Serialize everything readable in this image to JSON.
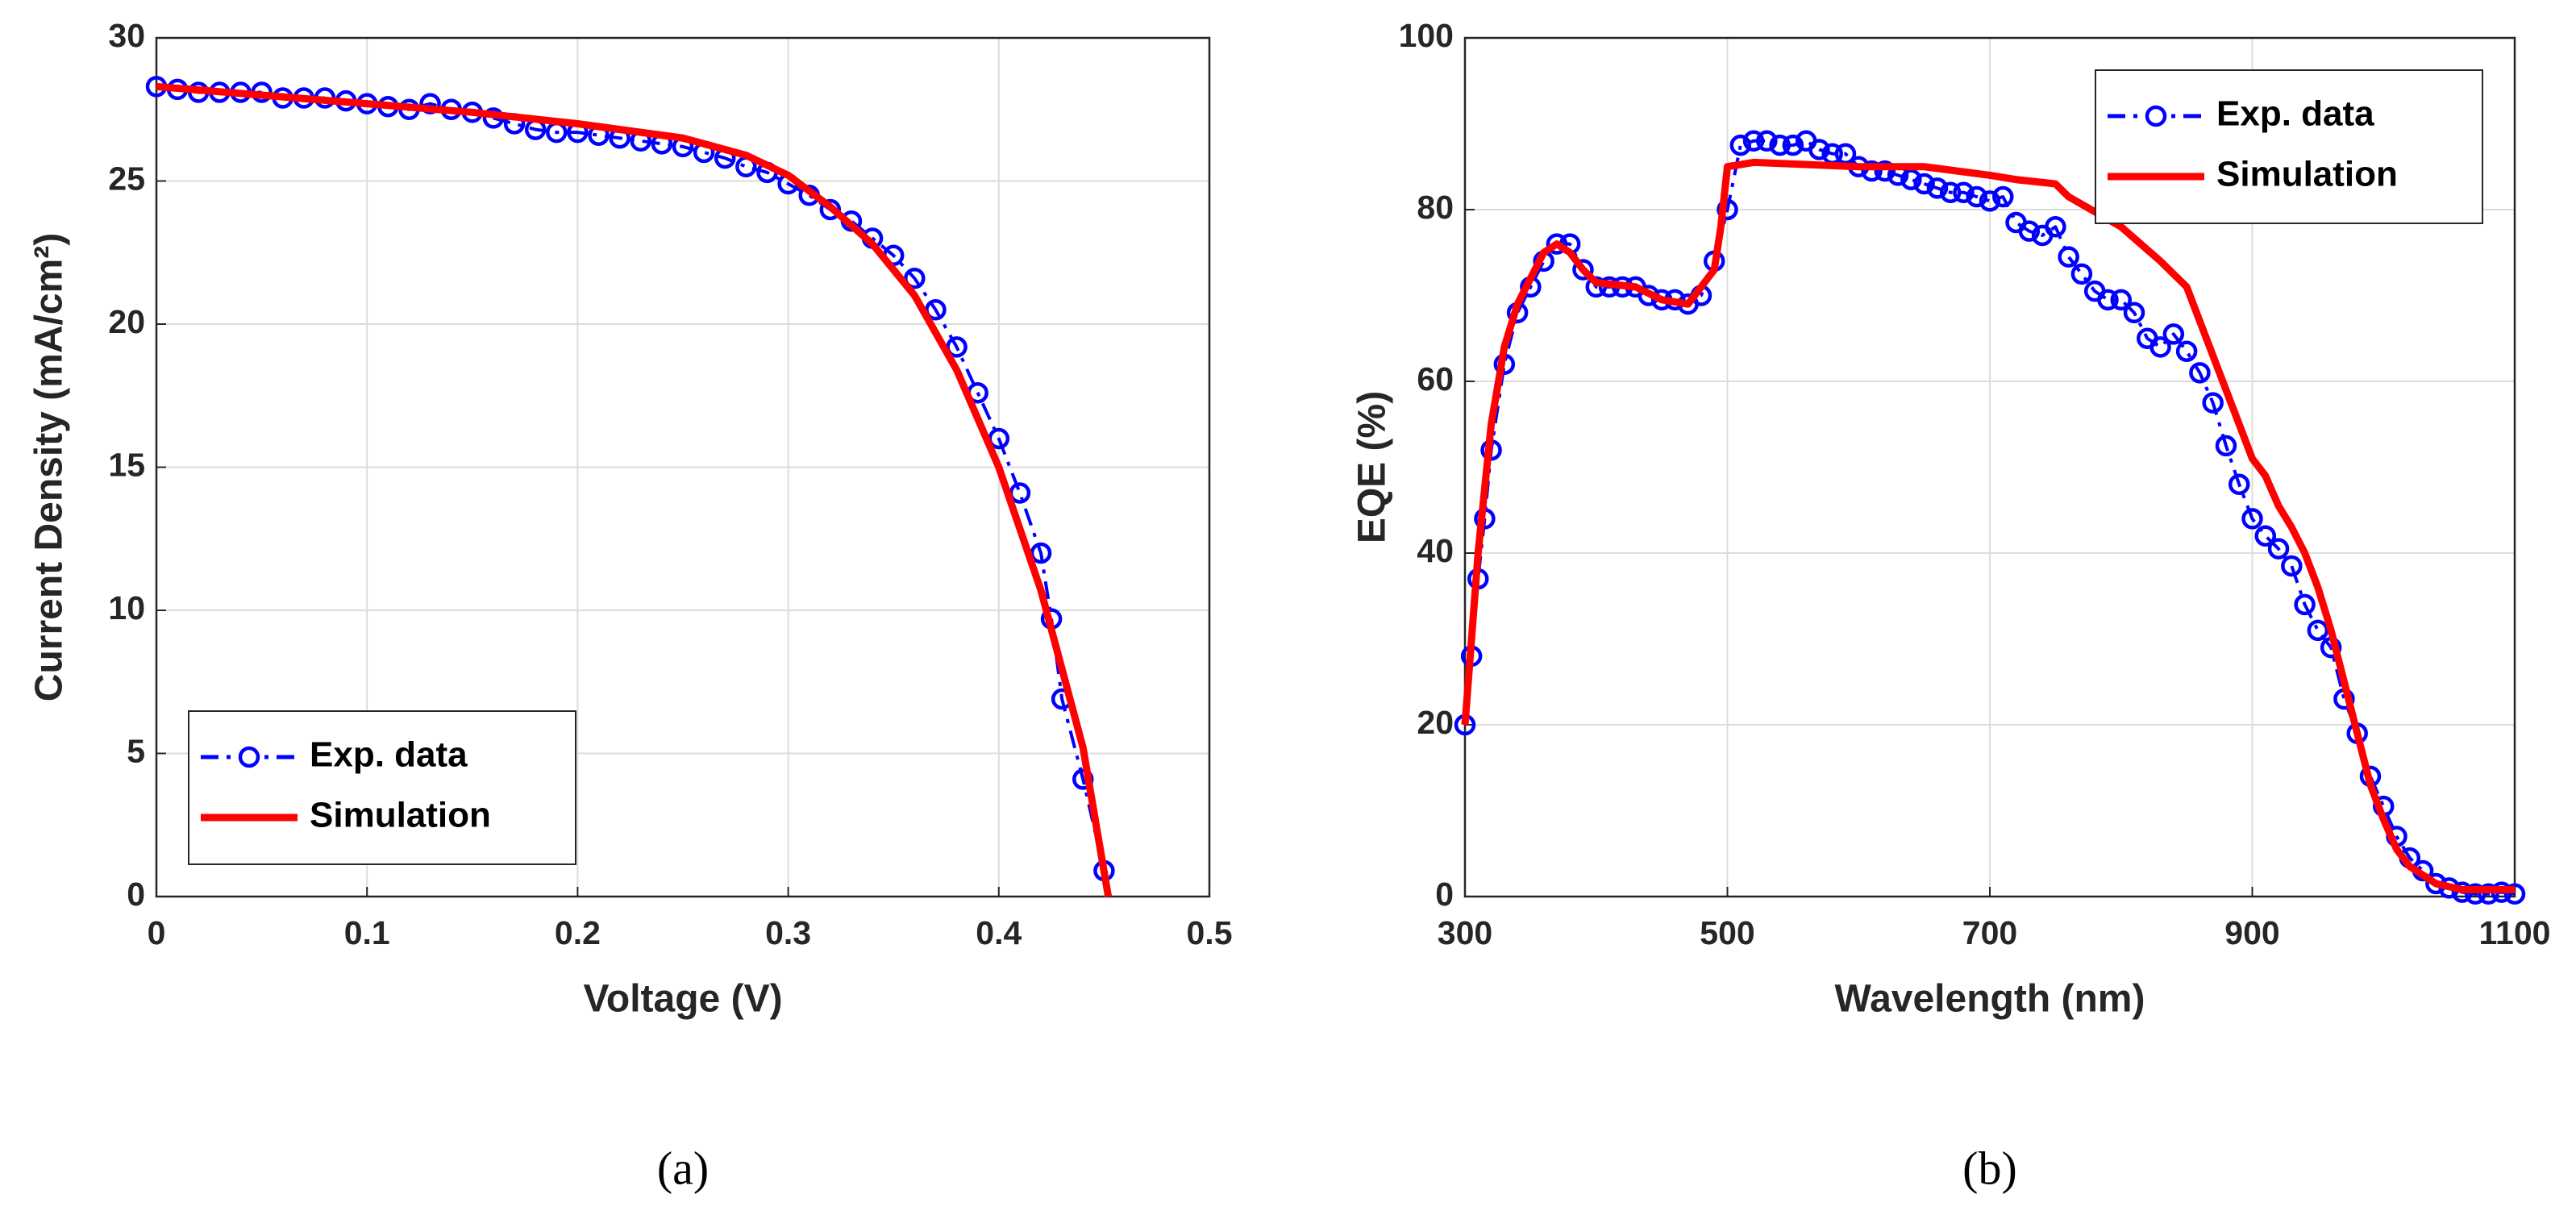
{
  "chart_data": [
    {
      "type": "line",
      "xlabel": "Voltage (V)",
      "ylabel": "Current Density (mA/cm²)",
      "caption": "(a)",
      "xlim": [
        0,
        0.5
      ],
      "xticks": [
        0,
        0.1,
        0.2,
        0.3,
        0.4,
        0.5
      ],
      "ylim": [
        0,
        30
      ],
      "yticks": [
        0,
        5,
        10,
        15,
        20,
        25,
        30
      ],
      "grid": true,
      "legend": "lower left",
      "series": [
        {
          "name": "Exp. data",
          "color": "#0000ff",
          "linestyle": "dashdot",
          "marker": "circle",
          "x": [
            0,
            0.01,
            0.02,
            0.03,
            0.04,
            0.05,
            0.06,
            0.07,
            0.08,
            0.09,
            0.1,
            0.11,
            0.12,
            0.13,
            0.14,
            0.15,
            0.16,
            0.17,
            0.18,
            0.19,
            0.2,
            0.21,
            0.22,
            0.23,
            0.24,
            0.25,
            0.26,
            0.27,
            0.28,
            0.29,
            0.3,
            0.31,
            0.32,
            0.33,
            0.34,
            0.35,
            0.36,
            0.37,
            0.38,
            0.39,
            0.4,
            0.41,
            0.42,
            0.425,
            0.43,
            0.44,
            0.45
          ],
          "values": [
            28.3,
            28.2,
            28.1,
            28.1,
            28.1,
            28.1,
            27.9,
            27.9,
            27.9,
            27.8,
            27.7,
            27.6,
            27.5,
            27.7,
            27.5,
            27.4,
            27.2,
            27.0,
            26.8,
            26.7,
            26.7,
            26.6,
            26.5,
            26.4,
            26.3,
            26.2,
            26.0,
            25.8,
            25.5,
            25.3,
            24.9,
            24.5,
            24.0,
            23.6,
            23.0,
            22.4,
            21.6,
            20.5,
            19.2,
            17.6,
            16.0,
            14.1,
            12.0,
            9.7,
            6.9,
            4.1,
            0.9
          ]
        },
        {
          "name": "Simulation",
          "color": "#ff0000",
          "linestyle": "solid",
          "x": [
            0,
            0.05,
            0.1,
            0.15,
            0.2,
            0.25,
            0.28,
            0.3,
            0.32,
            0.34,
            0.36,
            0.38,
            0.4,
            0.42,
            0.44,
            0.452
          ],
          "values": [
            28.3,
            28.0,
            27.7,
            27.4,
            27.0,
            26.5,
            25.9,
            25.2,
            24.1,
            22.8,
            21.0,
            18.4,
            15.0,
            10.7,
            5.2,
            0
          ]
        }
      ]
    },
    {
      "type": "line",
      "xlabel": "Wavelength (nm)",
      "ylabel": "EQE (%)",
      "caption": "(b)",
      "xlim": [
        300,
        1100
      ],
      "xticks": [
        300,
        500,
        700,
        900,
        1100
      ],
      "ylim": [
        0,
        100
      ],
      "yticks": [
        0,
        20,
        40,
        60,
        80,
        100
      ],
      "grid": true,
      "legend": "upper right",
      "series": [
        {
          "name": "Exp. data",
          "color": "#0000ff",
          "linestyle": "dashdot",
          "marker": "circle",
          "x": [
            300,
            305,
            310,
            315,
            320,
            330,
            340,
            350,
            360,
            370,
            380,
            390,
            400,
            410,
            420,
            430,
            440,
            450,
            460,
            470,
            480,
            490,
            500,
            510,
            520,
            530,
            540,
            550,
            560,
            570,
            580,
            590,
            600,
            610,
            620,
            630,
            640,
            650,
            660,
            670,
            680,
            690,
            700,
            710,
            720,
            730,
            740,
            750,
            760,
            770,
            780,
            790,
            800,
            810,
            820,
            830,
            840,
            850,
            860,
            870,
            880,
            890,
            900,
            910,
            920,
            930,
            940,
            950,
            960,
            970,
            980,
            990,
            1000,
            1010,
            1020,
            1030,
            1040,
            1050,
            1060,
            1070,
            1080,
            1090,
            1100
          ],
          "values": [
            20,
            28,
            37,
            44,
            52,
            62,
            68,
            71,
            74,
            76,
            76,
            73,
            71,
            71,
            71,
            71,
            70,
            69.5,
            69.5,
            69,
            70,
            74,
            80,
            87.5,
            88,
            88,
            87.5,
            87.5,
            88,
            87,
            86.5,
            86.5,
            85,
            84.5,
            84.5,
            84,
            83.5,
            83,
            82.5,
            82,
            82,
            81.5,
            81,
            81.5,
            78.5,
            77.5,
            77,
            78,
            74.5,
            72.5,
            70.5,
            69.5,
            69.5,
            68,
            65,
            64,
            65.5,
            63.5,
            61,
            57.5,
            52.5,
            48,
            44,
            42,
            40.5,
            38.5,
            34,
            31,
            29,
            23,
            19,
            14,
            10.5,
            7,
            4.5,
            3,
            1.5,
            1,
            0.5,
            0.3,
            0.3,
            0.5,
            0.3
          ]
        },
        {
          "name": "Simulation",
          "color": "#ff0000",
          "linestyle": "solid",
          "x": [
            300,
            310,
            320,
            330,
            340,
            350,
            360,
            370,
            380,
            390,
            400,
            430,
            450,
            470,
            490,
            495,
            500,
            520,
            600,
            650,
            700,
            720,
            750,
            760,
            800,
            830,
            850,
            870,
            890,
            900,
            910,
            920,
            930,
            940,
            950,
            960,
            970,
            980,
            990,
            1000,
            1010,
            1020,
            1040,
            1060,
            1100
          ],
          "values": [
            20,
            40,
            55,
            64,
            69,
            72,
            75,
            76,
            75,
            73,
            71.5,
            71,
            69.5,
            69,
            73,
            78,
            85,
            85.5,
            85,
            85,
            84,
            83.5,
            83,
            81.5,
            78,
            74,
            71,
            63,
            55,
            51,
            49,
            45.5,
            43,
            40,
            36,
            31,
            25,
            19,
            13,
            9,
            5.5,
            3.5,
            1.5,
            0.8,
            0.8
          ]
        }
      ]
    }
  ]
}
